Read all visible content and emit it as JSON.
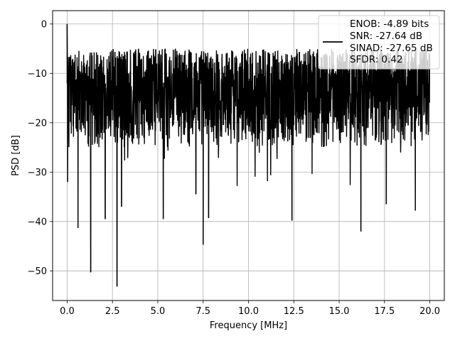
{
  "chart_data": {
    "type": "line",
    "xlabel": "Frequency [MHz]",
    "ylabel": "PSD [dB]",
    "xlim": [
      -0.8,
      20.8
    ],
    "ylim": [
      -56,
      2.7
    ],
    "xticks": [
      0.0,
      2.5,
      5.0,
      7.5,
      10.0,
      12.5,
      15.0,
      17.5,
      20.0
    ],
    "xtick_labels": [
      "0.0",
      "2.5",
      "5.0",
      "7.5",
      "10.0",
      "12.5",
      "15.0",
      "17.5",
      "20.0"
    ],
    "yticks": [
      0,
      -10,
      -20,
      -30,
      -40,
      -50
    ],
    "ytick_labels": [
      "0",
      "−10",
      "−20",
      "−30",
      "−40",
      "−50"
    ],
    "grid": true,
    "legend_position": "top-right",
    "line_color": "#000000",
    "series": [
      {
        "frequency_range_mhz": [
          0.0,
          20.0
        ],
        "typical_psd_range_db": [
          -25,
          -5
        ],
        "peak": {
          "x": 0.0,
          "y": 0.0
        },
        "notable_dips": [
          {
            "x": 0.6,
            "y": -41.3
          },
          {
            "x": 1.3,
            "y": -50.3
          },
          {
            "x": 2.1,
            "y": -39.5
          },
          {
            "x": 2.75,
            "y": -53.2
          },
          {
            "x": 3.0,
            "y": -37.0
          },
          {
            "x": 5.3,
            "y": -39.5
          },
          {
            "x": 7.1,
            "y": -34.5
          },
          {
            "x": 7.5,
            "y": -44.7
          },
          {
            "x": 7.8,
            "y": -39.3
          },
          {
            "x": 12.4,
            "y": -39.8
          },
          {
            "x": 16.2,
            "y": -42.0
          },
          {
            "x": 17.6,
            "y": -36.5
          },
          {
            "x": 19.2,
            "y": -37.8
          }
        ]
      }
    ],
    "legend": {
      "entries": [
        "ENOB: -4.89 bits",
        "SNR: -27.64 dB",
        "SINAD: -27.65 dB",
        "SFDR: 0.42"
      ]
    }
  }
}
